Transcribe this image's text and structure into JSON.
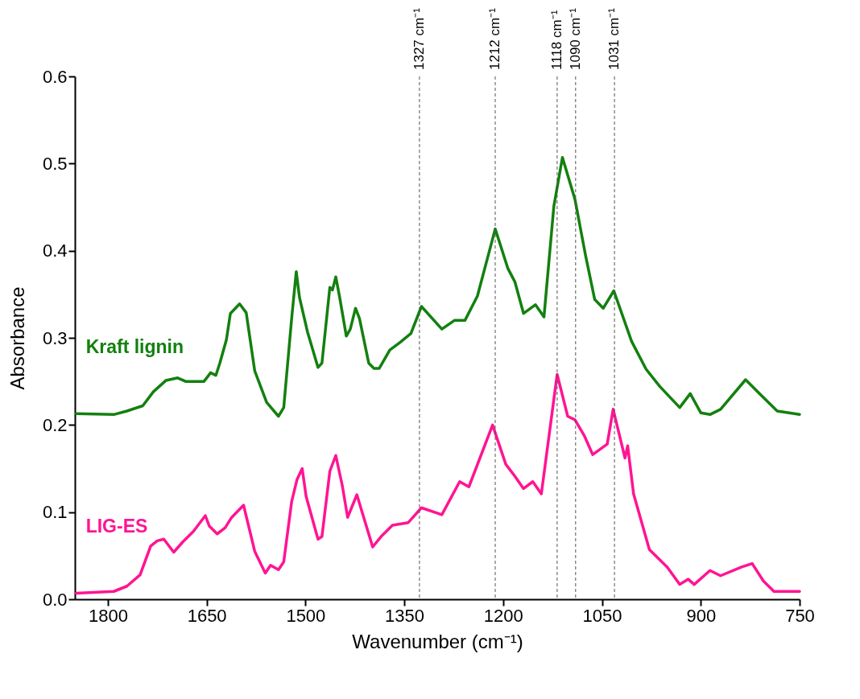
{
  "chart_data": {
    "type": "line",
    "xlabel": "Wavenumber (cm⁻¹)",
    "ylabel": "Absorbance",
    "xlim": [
      1850,
      750
    ],
    "xticks": [
      1800,
      1650,
      1500,
      1350,
      1200,
      1050,
      900,
      750
    ],
    "ylim": [
      0,
      0.6
    ],
    "yticks": [
      {
        "value": 0,
        "label": "0.0"
      },
      0.1,
      0.2,
      0.3,
      0.4,
      0.5,
      0.6
    ],
    "grid": false,
    "ref_lines": [
      {
        "axis": "x",
        "value": 1327,
        "label": "1327 cm⁻¹",
        "color": "#555555",
        "line_style": "dashed"
      },
      {
        "axis": "x",
        "value": 1212,
        "label": "1212 cm⁻¹",
        "color": "#555555",
        "line_style": "dashed"
      },
      {
        "axis": "x",
        "value": 1118,
        "label": "1118 cm⁻¹",
        "color": "#555555",
        "line_style": "dashed"
      },
      {
        "axis": "x",
        "value": 1090,
        "label": "1090 cm⁻¹",
        "color": "#555555",
        "line_style": "dashed"
      },
      {
        "axis": "x",
        "value": 1031,
        "label": "1031 cm⁻¹",
        "color": "#555555",
        "line_style": "dashed"
      }
    ],
    "series": [
      {
        "name": "Kraft lignin",
        "color": "#13800f",
        "x": [
          1848,
          1791,
          1771,
          1747,
          1731,
          1712,
          1694,
          1682,
          1654,
          1644,
          1636,
          1630,
          1620,
          1614,
          1600,
          1590,
          1577,
          1559,
          1541,
          1533,
          1521,
          1514,
          1509,
          1497,
          1481,
          1475,
          1463,
          1459,
          1454,
          1448,
          1438,
          1432,
          1424,
          1418,
          1404,
          1396,
          1388,
          1372,
          1356,
          1340,
          1324,
          1293,
          1274,
          1258,
          1239,
          1212,
          1193,
          1182,
          1169,
          1151,
          1138,
          1123,
          1110,
          1091,
          1075,
          1061,
          1048,
          1032,
          1005,
          983,
          962,
          932,
          916,
          900,
          886,
          870,
          832,
          811,
          784,
          750
        ],
        "values": [
          0.213,
          0.212,
          0.216,
          0.222,
          0.238,
          0.251,
          0.254,
          0.25,
          0.25,
          0.26,
          0.257,
          0.271,
          0.298,
          0.328,
          0.339,
          0.329,
          0.262,
          0.226,
          0.21,
          0.22,
          0.322,
          0.376,
          0.346,
          0.307,
          0.266,
          0.271,
          0.358,
          0.355,
          0.37,
          0.346,
          0.302,
          0.31,
          0.334,
          0.322,
          0.271,
          0.265,
          0.265,
          0.286,
          0.295,
          0.305,
          0.336,
          0.31,
          0.32,
          0.32,
          0.348,
          0.425,
          0.38,
          0.364,
          0.328,
          0.338,
          0.324,
          0.451,
          0.507,
          0.459,
          0.395,
          0.344,
          0.334,
          0.354,
          0.296,
          0.264,
          0.244,
          0.22,
          0.236,
          0.214,
          0.212,
          0.218,
          0.252,
          0.236,
          0.216,
          0.212
        ]
      },
      {
        "name": "LIG-ES",
        "color": "#ff1493",
        "x": [
          1848,
          1791,
          1771,
          1751,
          1735,
          1725,
          1715,
          1700,
          1686,
          1670,
          1652,
          1646,
          1634,
          1622,
          1612,
          1594,
          1577,
          1561,
          1553,
          1541,
          1533,
          1521,
          1513,
          1505,
          1499,
          1481,
          1475,
          1463,
          1454,
          1444,
          1436,
          1422,
          1414,
          1398,
          1384,
          1368,
          1344,
          1324,
          1293,
          1266,
          1252,
          1216,
          1196,
          1182,
          1169,
          1155,
          1142,
          1118,
          1102,
          1091,
          1077,
          1064,
          1042,
          1033,
          1015,
          1011,
          1002,
          978,
          951,
          932,
          919,
          910,
          886,
          870,
          838,
          822,
          805,
          789,
          750
        ],
        "values": [
          0.007,
          0.009,
          0.015,
          0.028,
          0.061,
          0.067,
          0.069,
          0.054,
          0.066,
          0.078,
          0.096,
          0.084,
          0.075,
          0.082,
          0.094,
          0.108,
          0.055,
          0.03,
          0.039,
          0.034,
          0.043,
          0.112,
          0.137,
          0.15,
          0.118,
          0.069,
          0.072,
          0.147,
          0.165,
          0.13,
          0.094,
          0.12,
          0.1,
          0.06,
          0.073,
          0.085,
          0.088,
          0.105,
          0.097,
          0.135,
          0.129,
          0.2,
          0.155,
          0.141,
          0.127,
          0.135,
          0.121,
          0.258,
          0.21,
          0.206,
          0.188,
          0.166,
          0.178,
          0.218,
          0.162,
          0.176,
          0.121,
          0.057,
          0.037,
          0.017,
          0.023,
          0.017,
          0.033,
          0.027,
          0.037,
          0.041,
          0.021,
          0.009,
          0.009
        ]
      }
    ]
  }
}
